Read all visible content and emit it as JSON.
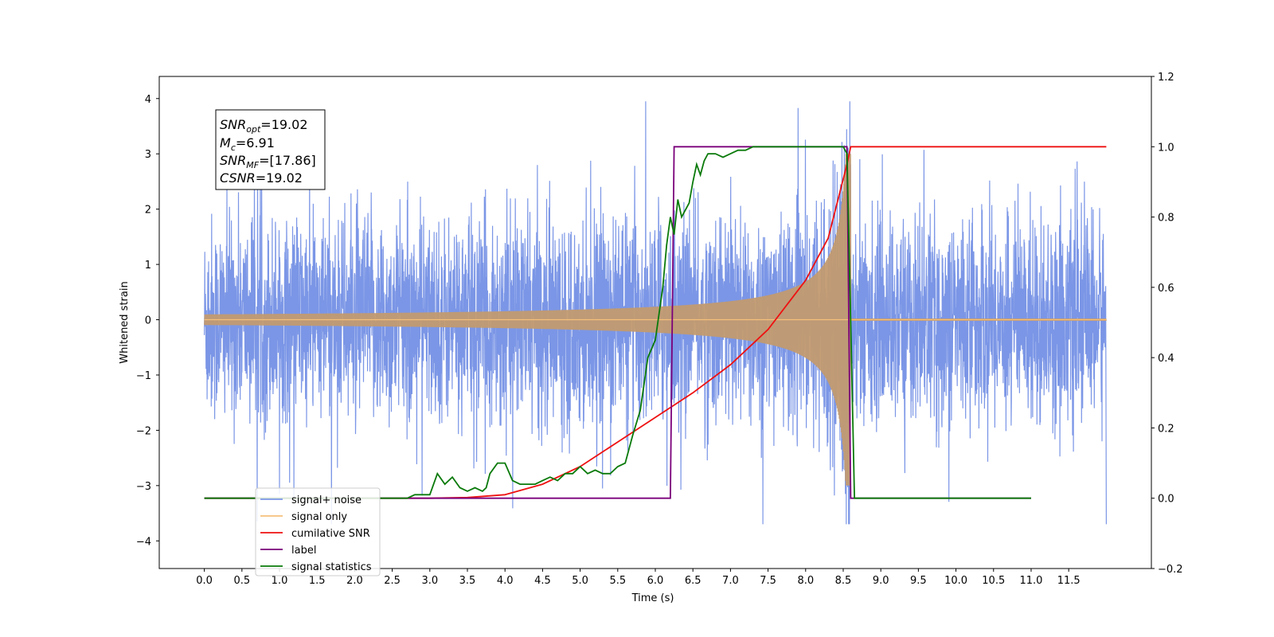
{
  "chart_data": {
    "type": "line",
    "title": "",
    "xlabel": "Time (s)",
    "ylabel": "Whitened strain",
    "xlim": [
      -0.6,
      12.6
    ],
    "ylim": [
      -4.5,
      4.4
    ],
    "y2lim": [
      -0.2,
      1.2
    ],
    "x_ticks": [
      "0.0",
      "0.5",
      "1.0",
      "1.5",
      "2.0",
      "2.5",
      "3.0",
      "3.5",
      "4.0",
      "4.5",
      "5.0",
      "5.5",
      "6.0",
      "6.5",
      "7.0",
      "7.5",
      "8.0",
      "8.5",
      "9.0",
      "9.5",
      "10.0",
      "10.5",
      "11.0",
      "11.5"
    ],
    "y_ticks": [
      "−4",
      "−3",
      "−2",
      "−1",
      "0",
      "1",
      "2",
      "3",
      "4"
    ],
    "y2_ticks": [
      "−0.2",
      "0.0",
      "0.2",
      "0.4",
      "0.6",
      "0.8",
      "1.0",
      "1.2"
    ],
    "grid": false,
    "legend_position": "lower-left",
    "stats_box": {
      "snr_opt": "=19.02",
      "mc": "=6.91",
      "snr_mf": "=[17.86]",
      "csnr": "=19.02"
    },
    "series": [
      {
        "name": "signal+ noise",
        "color": "#7b96e6",
        "axis": "left",
        "noise_sigma": 0.9,
        "x_range": [
          0.0,
          12.0
        ],
        "note": "dense noise trace"
      },
      {
        "name": "signal only",
        "color": "#f5c07a",
        "axis": "left",
        "chirp_end": 8.6,
        "peak_amplitude": 3.0
      },
      {
        "name": "cumilative SNR",
        "color": "#ee1111",
        "axis": "right",
        "x": [
          0.0,
          3.0,
          3.5,
          4.0,
          4.5,
          5.0,
          5.5,
          6.0,
          6.5,
          7.0,
          7.5,
          8.0,
          8.3,
          8.55,
          8.6,
          12.0
        ],
        "y": [
          0.0,
          0.0,
          0.002,
          0.01,
          0.04,
          0.09,
          0.16,
          0.23,
          0.3,
          0.38,
          0.48,
          0.62,
          0.74,
          0.95,
          1.0,
          1.0
        ]
      },
      {
        "name": "label",
        "color": "#7a007a",
        "axis": "right",
        "x": [
          0.0,
          6.2,
          6.25,
          8.55,
          8.6,
          11.0
        ],
        "y": [
          0.0,
          0.0,
          1.0,
          1.0,
          0.0,
          0.0
        ]
      },
      {
        "name": "signal statistics",
        "color": "#0a7a0a",
        "axis": "right",
        "x": [
          0.0,
          2.7,
          2.8,
          2.9,
          3.0,
          3.1,
          3.2,
          3.3,
          3.4,
          3.5,
          3.6,
          3.7,
          3.75,
          3.8,
          3.9,
          4.0,
          4.1,
          4.2,
          4.3,
          4.4,
          4.5,
          4.6,
          4.7,
          4.8,
          4.9,
          5.0,
          5.1,
          5.2,
          5.3,
          5.4,
          5.5,
          5.6,
          5.7,
          5.8,
          5.9,
          6.0,
          6.1,
          6.15,
          6.2,
          6.25,
          6.3,
          6.35,
          6.4,
          6.45,
          6.5,
          6.55,
          6.6,
          6.65,
          6.7,
          6.8,
          6.9,
          7.0,
          7.1,
          7.2,
          7.3,
          7.5,
          8.0,
          8.5,
          8.55,
          8.6,
          8.65,
          11.0
        ],
        "y": [
          0.0,
          0.0,
          0.01,
          0.01,
          0.01,
          0.07,
          0.04,
          0.06,
          0.03,
          0.02,
          0.03,
          0.02,
          0.03,
          0.07,
          0.1,
          0.1,
          0.05,
          0.04,
          0.04,
          0.04,
          0.05,
          0.06,
          0.05,
          0.07,
          0.07,
          0.09,
          0.07,
          0.08,
          0.07,
          0.07,
          0.09,
          0.1,
          0.18,
          0.25,
          0.4,
          0.45,
          0.6,
          0.72,
          0.8,
          0.75,
          0.85,
          0.8,
          0.82,
          0.84,
          0.9,
          0.95,
          0.92,
          0.96,
          0.98,
          0.98,
          0.97,
          0.98,
          0.99,
          0.99,
          1.0,
          1.0,
          1.0,
          1.0,
          0.98,
          0.5,
          0.0,
          0.0
        ]
      }
    ]
  }
}
